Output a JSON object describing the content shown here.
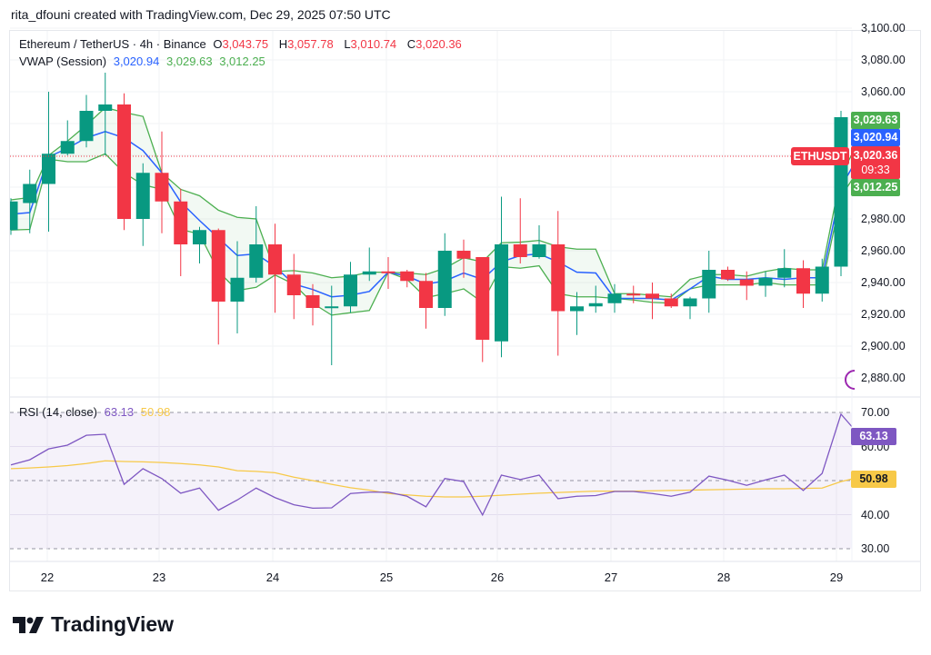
{
  "credit": "rita_dfouni created with TradingView.com, Dec 29, 2025 07:50 UTC",
  "legend": {
    "symbol": "Ethereum / TetherUS · 4h · Binance",
    "o_label": "O",
    "o": "3,043.75",
    "h_label": "H",
    "h": "3,057.78",
    "l_label": "L",
    "l": "3,010.74",
    "c_label": "C",
    "c": "3,020.36",
    "vwap_label": "VWAP (Session)",
    "vwap": "3,020.94",
    "vwap_upper": "3,029.63",
    "vwap_lower": "3,012.25",
    "rsi_label": "RSI (14, close)",
    "rsi": "63.13",
    "rsi_ma": "50.98"
  },
  "price_tags": {
    "symbol": "ETHUSDT",
    "last": "3,020.36",
    "countdown": "09:33",
    "vwap_upper": "3,029.63",
    "vwap": "3,020.94",
    "vwap_lower": "3,012.25",
    "rsi": "63.13",
    "rsi_ma": "50.98"
  },
  "price_axis": [
    "3,100.00",
    "3,080.00",
    "3,060.00",
    "2,980.00",
    "2,960.00",
    "2,940.00",
    "2,920.00",
    "2,900.00",
    "2,880.00"
  ],
  "rsi_axis": [
    "70.00",
    "60.00",
    "40.00",
    "30.00"
  ],
  "time_axis": [
    "22",
    "23",
    "24",
    "25",
    "26",
    "27",
    "28",
    "29"
  ],
  "brand": "TradingView",
  "colors": {
    "up": "#089981",
    "down": "#f23645",
    "vwap": "#2962ff",
    "band": "#4caf50",
    "rsi": "#7e57c2",
    "rsi_ma": "#f7c948"
  },
  "chart_data": [
    {
      "type": "candlestick",
      "title": "Ethereum / TetherUS · 4h · Binance",
      "x_ticks": [
        "22",
        "23",
        "24",
        "25",
        "26",
        "27",
        "28",
        "29"
      ],
      "ylim": [
        2870,
        3100
      ],
      "grid": true,
      "ohlc": [
        [
          2973,
          2993,
          2970,
          2991
        ],
        [
          2990,
          3011,
          2971,
          3002
        ],
        [
          3002,
          3060,
          2972,
          3021
        ],
        [
          3021,
          3042,
          3020,
          3029
        ],
        [
          3029,
          3058,
          3025,
          3048
        ],
        [
          3048,
          3072,
          3020,
          3052
        ],
        [
          3052,
          3059,
          2973,
          2980
        ],
        [
          2980,
          3015,
          2963,
          3009
        ],
        [
          3009,
          3035,
          2971,
          2991
        ],
        [
          2991,
          2999,
          2944,
          2964
        ],
        [
          2964,
          2975,
          2952,
          2973
        ],
        [
          2973,
          2974,
          2901,
          2928
        ],
        [
          2928,
          2966,
          2908,
          2943
        ],
        [
          2943,
          2988,
          2940,
          2964
        ],
        [
          2964,
          2977,
          2921,
          2945
        ],
        [
          2945,
          2958,
          2917,
          2932
        ],
        [
          2932,
          2939,
          2913,
          2924
        ],
        [
          2924,
          2938,
          2888,
          2925
        ],
        [
          2925,
          2953,
          2921,
          2945
        ],
        [
          2945,
          2962,
          2941,
          2947
        ],
        [
          2947,
          2956,
          2936,
          2946
        ],
        [
          2947,
          2948,
          2937,
          2941
        ],
        [
          2941,
          2946,
          2911,
          2924
        ],
        [
          2924,
          2971,
          2919,
          2960
        ],
        [
          2960,
          2967,
          2943,
          2955
        ],
        [
          2956,
          2956,
          2890,
          2904
        ],
        [
          2903,
          2994,
          2893,
          2964
        ],
        [
          2964,
          2993,
          2952,
          2956
        ],
        [
          2956,
          2976,
          2955,
          2964
        ],
        [
          2964,
          2985,
          2894,
          2922
        ],
        [
          2922,
          2934,
          2907,
          2925
        ],
        [
          2925,
          2938,
          2921,
          2927
        ],
        [
          2927,
          2939,
          2921,
          2933
        ],
        [
          2933,
          2938,
          2927,
          2932
        ],
        [
          2933,
          2940,
          2917,
          2930
        ],
        [
          2930,
          2933,
          2924,
          2925
        ],
        [
          2925,
          2931,
          2917,
          2930
        ],
        [
          2930,
          2960,
          2921,
          2948
        ],
        [
          2948,
          2950,
          2941,
          2942
        ],
        [
          2942,
          2947,
          2929,
          2938
        ],
        [
          2938,
          2947,
          2931,
          2943
        ],
        [
          2943,
          2961,
          2937,
          2949
        ],
        [
          2949,
          2954,
          2924,
          2933
        ],
        [
          2933,
          2955,
          2928,
          2950
        ],
        [
          2950,
          3048,
          2944,
          3044
        ],
        [
          3043.75,
          3057.78,
          3010.74,
          3020.36
        ]
      ],
      "series": [
        {
          "name": "VWAP (Session)",
          "values": [
            2983,
            2984,
            3019,
            3024.5,
            3031,
            3035,
            3031,
            3023,
            3009,
            2990.6,
            2979,
            2968,
            2957,
            2958,
            2950,
            2939,
            2935.6,
            2931,
            2932,
            2934.4,
            2946.5,
            2944,
            2939,
            2941,
            2946,
            2942,
            2953,
            2957,
            2958,
            2953,
            2946.5,
            2946,
            2930,
            2930,
            2930,
            2929,
            2936,
            2944,
            2942,
            2942,
            2943,
            2942,
            2943,
            2943,
            3000,
            3020.94
          ]
        },
        {
          "values": [
            2992,
            2993.5,
            3020,
            3029,
            3039,
            3050,
            3047,
            3044.5,
            3009,
            2998.6,
            2994.6,
            2985.5,
            2981,
            2980,
            2947,
            2947.5,
            2946,
            2943,
            2944,
            2946.5,
            2946.5,
            2946,
            2945,
            2949,
            2955.6,
            2953,
            2965,
            2965.4,
            2966.5,
            2962.5,
            2961,
            2961,
            2933,
            2933,
            2932,
            2931,
            2942,
            2945,
            2945,
            2944,
            2947,
            2949,
            2948,
            2948,
            3008,
            3029.63
          ]
        },
        {
          "values": [
            2973,
            2973.4,
            3017.6,
            3016,
            3016,
            3021,
            3009,
            3001.5,
            2998.6,
            2973.4,
            2970.5,
            2947,
            2935,
            2937,
            2944.7,
            2939,
            2927,
            2919.5,
            2921,
            2922.4,
            2946.5,
            2942,
            2930.5,
            2933,
            2936,
            2927.5,
            2950,
            2949,
            2950.5,
            2933,
            2931,
            2931,
            2930,
            2929,
            2927.5,
            2927,
            2936,
            2938.5,
            2938.5,
            2938.5,
            2940,
            2938.5,
            2938.5,
            2938.5,
            2994,
            3012.25
          ]
        }
      ]
    },
    {
      "type": "line",
      "title": "RSI (14, close)",
      "ylim": [
        25,
        75
      ],
      "y_ticks": [
        30,
        40,
        50,
        60,
        70
      ],
      "series": [
        {
          "name": "RSI",
          "values": [
            54.6,
            56.1,
            59.3,
            60.4,
            63.3,
            63.6,
            48.9,
            53.5,
            50.6,
            46.3,
            47.8,
            41.3,
            44.3,
            47.8,
            45,
            42.9,
            41.9,
            42,
            46.2,
            46.6,
            46.6,
            45.4,
            42.3,
            50.6,
            49.7,
            39.9,
            51.6,
            50.3,
            51.6,
            44.7,
            45.4,
            45.6,
            46.8,
            46.8,
            46.2,
            45.4,
            46.6,
            51.3,
            50.1,
            48.6,
            50.2,
            51.6,
            47.1,
            52.1,
            69.5,
            63.13
          ]
        },
        {
          "name": "RSI-based MA",
          "values": [
            53.5,
            53.7,
            54,
            54.4,
            55,
            55.8,
            55.6,
            55.5,
            55.3,
            55,
            54.6,
            54,
            52.9,
            52.7,
            52.3,
            51,
            50,
            48.9,
            47.9,
            47.2,
            46.2,
            45.8,
            45.4,
            45.2,
            45.2,
            45.4,
            45.7,
            46,
            46.3,
            46.5,
            46.7,
            46.9,
            46.9,
            46.9,
            47,
            47.1,
            47.2,
            47.3,
            47.4,
            47.5,
            47.6,
            47.6,
            47.7,
            47.8,
            49.7,
            50.98
          ]
        }
      ]
    }
  ]
}
